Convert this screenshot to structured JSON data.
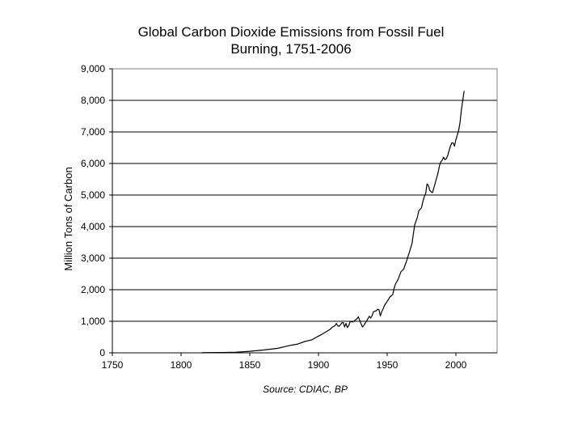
{
  "chart_data": {
    "type": "line",
    "title_line1": "Global Carbon Dioxide Emissions from Fossil Fuel",
    "title_line2": "Burning, 1751-2006",
    "xlabel": "",
    "ylabel": "Million Tons of Carbon",
    "xlim": [
      1750,
      2030
    ],
    "ylim": [
      0,
      9000
    ],
    "xticks": [
      "1750",
      "1800",
      "1850",
      "1900",
      "1950",
      "2000"
    ],
    "yticks": [
      "0",
      "1,000",
      "2,000",
      "3,000",
      "4,000",
      "5,000",
      "6,000",
      "7,000",
      "8,000",
      "9,000"
    ],
    "grid": "horizontal",
    "source": "Source: CDIAC, BP",
    "series": [
      {
        "color": "#000000",
        "x": [
          1815,
          1830,
          1840,
          1850,
          1860,
          1870,
          1875,
          1880,
          1885,
          1890,
          1895,
          1900,
          1903,
          1906,
          1908,
          1910,
          1912,
          1913,
          1914,
          1915,
          1916,
          1917,
          1918,
          1919,
          1920,
          1921,
          1922,
          1923,
          1925,
          1927,
          1928,
          1929,
          1930,
          1931,
          1932,
          1933,
          1935,
          1937,
          1938,
          1939,
          1940,
          1941,
          1942,
          1943,
          1944,
          1945,
          1946,
          1947,
          1948,
          1950,
          1952,
          1954,
          1955,
          1956,
          1958,
          1960,
          1962,
          1964,
          1966,
          1968,
          1970,
          1972,
          1973,
          1974,
          1975,
          1976,
          1977,
          1978,
          1979,
          1980,
          1981,
          1982,
          1983,
          1984,
          1985,
          1987,
          1988,
          1989,
          1990,
          1991,
          1992,
          1993,
          1994,
          1995,
          1996,
          1997,
          1998,
          1999,
          2000,
          2001,
          2002,
          2003,
          2004,
          2005,
          2006
        ],
        "y": [
          5,
          10,
          20,
          50,
          90,
          140,
          190,
          240,
          280,
          360,
          410,
          530,
          600,
          680,
          730,
          810,
          860,
          930,
          860,
          840,
          890,
          950,
          960,
          820,
          930,
          800,
          860,
          990,
          980,
          1050,
          1080,
          1140,
          1030,
          920,
          820,
          870,
          1010,
          1160,
          1100,
          1180,
          1300,
          1320,
          1330,
          1380,
          1370,
          1170,
          1300,
          1390,
          1500,
          1630,
          1770,
          1840,
          2040,
          2180,
          2330,
          2570,
          2650,
          2900,
          3170,
          3450,
          4050,
          4300,
          4500,
          4550,
          4600,
          4800,
          4950,
          5050,
          5350,
          5300,
          5150,
          5100,
          5080,
          5230,
          5390,
          5700,
          5920,
          6050,
          6100,
          6200,
          6120,
          6150,
          6250,
          6400,
          6550,
          6650,
          6650,
          6550,
          6750,
          6900,
          7050,
          7300,
          7700,
          8000,
          8300
        ]
      }
    ]
  }
}
